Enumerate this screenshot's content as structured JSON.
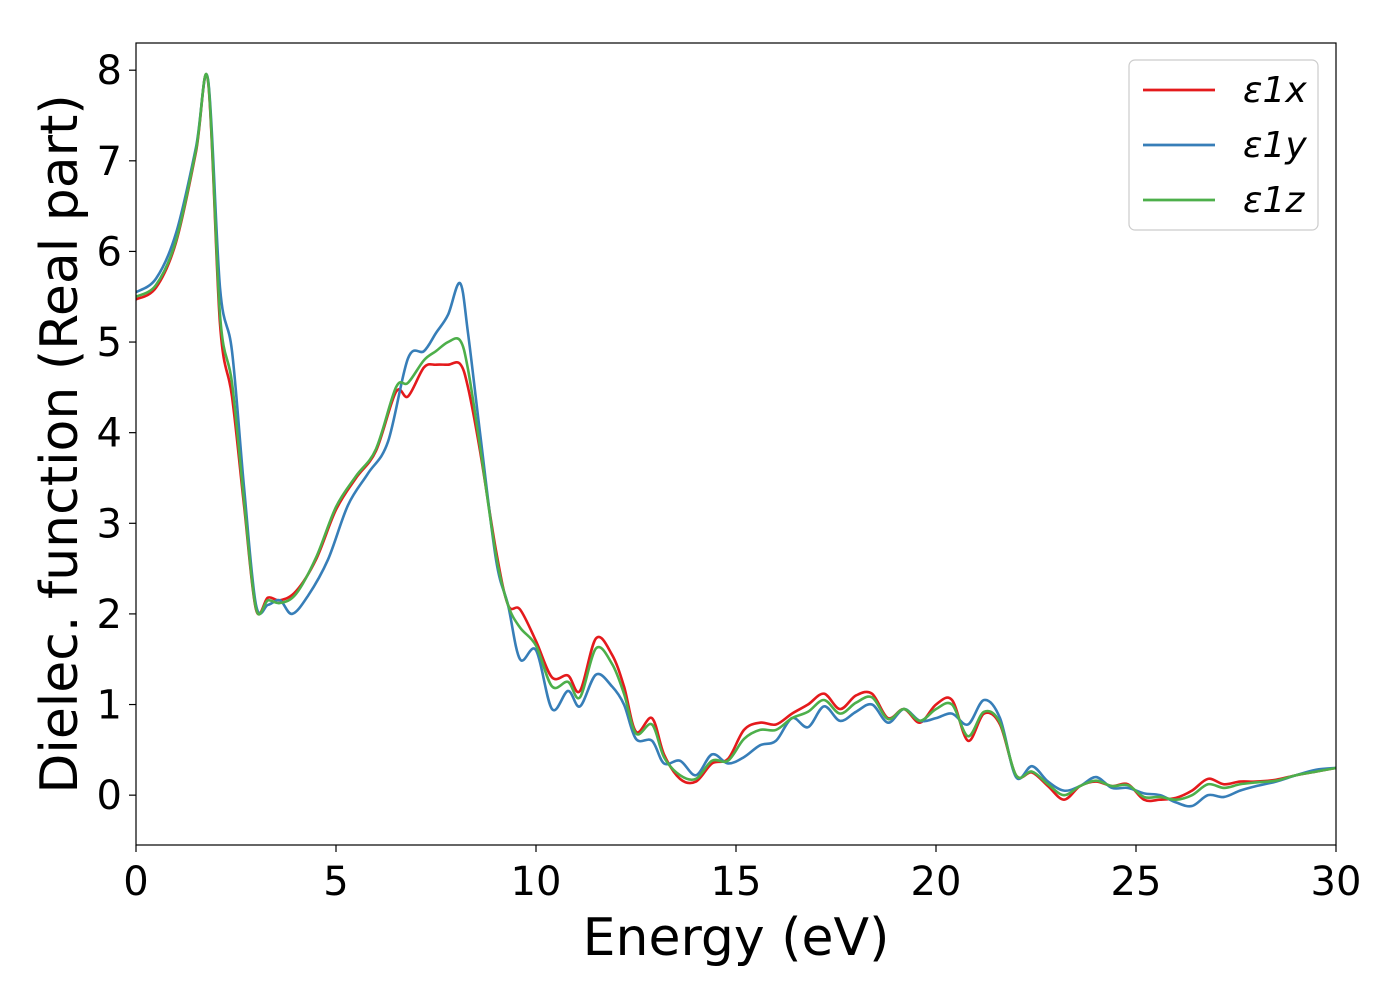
{
  "chart_data": {
    "type": "line",
    "xlabel": "Energy (eV)",
    "ylabel": "Dielec. function (Real part)",
    "xlim": [
      0,
      30
    ],
    "ylim": [
      -0.55,
      8.3
    ],
    "xticks": [
      0,
      5,
      10,
      15,
      20,
      25,
      30
    ],
    "yticks": [
      0,
      1,
      2,
      3,
      4,
      5,
      6,
      7,
      8
    ],
    "xtick_labels": [
      "0",
      "5",
      "10",
      "15",
      "20",
      "25",
      "30"
    ],
    "ytick_labels": [
      "0",
      "1",
      "2",
      "3",
      "4",
      "5",
      "6",
      "7",
      "8"
    ],
    "grid": false,
    "legend_position": "top-right",
    "series": [
      {
        "name": "ε1x",
        "color": "#e41a1c",
        "x": [
          0,
          0.5,
          1.0,
          1.5,
          1.8,
          2.1,
          2.4,
          2.7,
          3.0,
          3.3,
          3.6,
          4.0,
          4.5,
          5.0,
          5.5,
          6.0,
          6.5,
          6.8,
          7.2,
          7.5,
          7.8,
          8.1,
          8.3,
          8.6,
          9.0,
          9.3,
          9.6,
          10.0,
          10.4,
          10.8,
          11.1,
          11.5,
          11.9,
          12.2,
          12.5,
          12.9,
          13.2,
          13.6,
          14.0,
          14.4,
          14.8,
          15.2,
          15.6,
          16.0,
          16.4,
          16.8,
          17.2,
          17.6,
          18.0,
          18.4,
          18.8,
          19.2,
          19.6,
          20.0,
          20.4,
          20.8,
          21.2,
          21.6,
          22.0,
          22.4,
          22.8,
          23.2,
          23.6,
          24.0,
          24.4,
          24.8,
          25.2,
          25.6,
          26.0,
          26.4,
          26.8,
          27.2,
          27.6,
          28.0,
          28.5,
          29.0,
          29.5,
          30.0
        ],
        "values": [
          5.47,
          5.6,
          6.1,
          7.1,
          7.88,
          5.2,
          4.4,
          3.2,
          2.05,
          2.18,
          2.15,
          2.25,
          2.6,
          3.15,
          3.5,
          3.8,
          4.45,
          4.4,
          4.72,
          4.75,
          4.75,
          4.76,
          4.5,
          3.8,
          2.7,
          2.1,
          2.05,
          1.7,
          1.3,
          1.32,
          1.15,
          1.73,
          1.55,
          1.2,
          0.7,
          0.85,
          0.45,
          0.18,
          0.15,
          0.35,
          0.4,
          0.72,
          0.8,
          0.78,
          0.9,
          1.0,
          1.12,
          0.95,
          1.1,
          1.12,
          0.85,
          0.95,
          0.8,
          1.0,
          1.05,
          0.6,
          0.9,
          0.78,
          0.22,
          0.25,
          0.1,
          -0.05,
          0.1,
          0.15,
          0.1,
          0.12,
          -0.05,
          -0.05,
          -0.03,
          0.05,
          0.18,
          0.12,
          0.15,
          0.15,
          0.17,
          0.22,
          0.26,
          0.3
        ]
      },
      {
        "name": "ε1y",
        "color": "#377eb8",
        "x": [
          0,
          0.5,
          1.0,
          1.5,
          1.8,
          2.1,
          2.4,
          2.7,
          3.0,
          3.3,
          3.6,
          3.9,
          4.3,
          4.8,
          5.3,
          5.8,
          6.3,
          6.8,
          7.2,
          7.5,
          7.8,
          8.1,
          8.3,
          8.6,
          9.0,
          9.3,
          9.6,
          10.0,
          10.4,
          10.8,
          11.1,
          11.5,
          11.9,
          12.2,
          12.5,
          12.9,
          13.2,
          13.6,
          14.0,
          14.4,
          14.8,
          15.2,
          15.6,
          16.0,
          16.4,
          16.8,
          17.2,
          17.6,
          18.0,
          18.4,
          18.8,
          19.2,
          19.6,
          20.0,
          20.4,
          20.8,
          21.2,
          21.6,
          22.0,
          22.4,
          22.8,
          23.2,
          23.6,
          24.0,
          24.4,
          24.8,
          25.2,
          25.6,
          26.0,
          26.4,
          26.8,
          27.2,
          27.6,
          28.0,
          28.5,
          29.0,
          29.5,
          30.0
        ],
        "values": [
          5.55,
          5.7,
          6.2,
          7.15,
          7.9,
          5.6,
          4.9,
          3.4,
          2.1,
          2.1,
          2.15,
          2.0,
          2.2,
          2.6,
          3.2,
          3.55,
          3.9,
          4.82,
          4.9,
          5.1,
          5.3,
          5.65,
          5.1,
          4.0,
          2.6,
          2.1,
          1.5,
          1.6,
          0.95,
          1.15,
          0.98,
          1.33,
          1.2,
          1.0,
          0.62,
          0.6,
          0.35,
          0.38,
          0.22,
          0.45,
          0.35,
          0.42,
          0.55,
          0.6,
          0.85,
          0.75,
          0.98,
          0.82,
          0.92,
          1.0,
          0.8,
          0.95,
          0.82,
          0.85,
          0.9,
          0.78,
          1.05,
          0.85,
          0.2,
          0.32,
          0.15,
          0.05,
          0.1,
          0.2,
          0.08,
          0.08,
          0.02,
          0.0,
          -0.08,
          -0.12,
          0.0,
          -0.02,
          0.05,
          0.1,
          0.15,
          0.22,
          0.28,
          0.3
        ]
      },
      {
        "name": "ε1z",
        "color": "#4daf4a",
        "x": [
          0,
          0.5,
          1.0,
          1.5,
          1.8,
          2.1,
          2.4,
          2.7,
          3.0,
          3.3,
          3.6,
          4.0,
          4.5,
          5.0,
          5.5,
          6.0,
          6.5,
          6.8,
          7.2,
          7.5,
          7.8,
          8.1,
          8.3,
          8.6,
          9.0,
          9.3,
          9.6,
          10.0,
          10.4,
          10.8,
          11.1,
          11.5,
          11.9,
          12.2,
          12.5,
          12.9,
          13.2,
          13.6,
          14.0,
          14.4,
          14.8,
          15.2,
          15.6,
          16.0,
          16.4,
          16.8,
          17.2,
          17.6,
          18.0,
          18.4,
          18.8,
          19.2,
          19.6,
          20.0,
          20.4,
          20.8,
          21.2,
          21.6,
          22.0,
          22.4,
          22.8,
          23.2,
          23.6,
          24.0,
          24.4,
          24.8,
          25.2,
          25.6,
          26.0,
          26.4,
          26.8,
          27.2,
          27.6,
          28.0,
          28.5,
          29.0,
          29.5,
          30.0
        ],
        "values": [
          5.5,
          5.63,
          6.12,
          7.12,
          7.89,
          5.3,
          4.55,
          3.25,
          2.06,
          2.15,
          2.12,
          2.22,
          2.62,
          3.18,
          3.52,
          3.82,
          4.5,
          4.55,
          4.8,
          4.9,
          5.0,
          5.02,
          4.7,
          3.85,
          2.65,
          2.1,
          1.85,
          1.65,
          1.2,
          1.25,
          1.08,
          1.62,
          1.45,
          1.12,
          0.68,
          0.78,
          0.42,
          0.22,
          0.18,
          0.38,
          0.38,
          0.62,
          0.72,
          0.72,
          0.85,
          0.92,
          1.05,
          0.9,
          1.02,
          1.08,
          0.84,
          0.95,
          0.82,
          0.95,
          1.0,
          0.65,
          0.92,
          0.8,
          0.22,
          0.26,
          0.12,
          0.0,
          0.1,
          0.16,
          0.1,
          0.11,
          -0.02,
          -0.02,
          -0.05,
          0.0,
          0.12,
          0.08,
          0.12,
          0.14,
          0.16,
          0.22,
          0.26,
          0.3
        ]
      }
    ]
  }
}
